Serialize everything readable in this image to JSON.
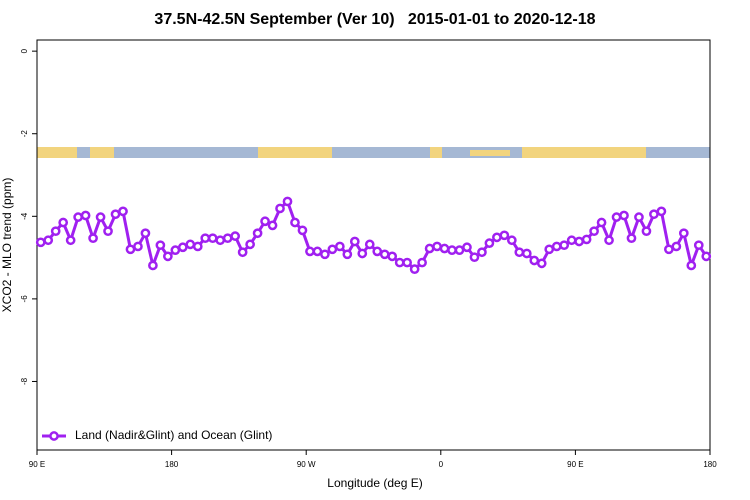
{
  "chart_data": {
    "type": "line",
    "title": "37.5N-42.5N September (Ver 10)   2015-01-01 to 2020-12-18",
    "xlabel": "Longitude (deg E)",
    "ylabel": "XCO2 - MLO trend (ppm)",
    "xlim": [
      90,
      540
    ],
    "xticks": [
      {
        "value": 90,
        "label": "90 E"
      },
      180,
      {
        "value": 270,
        "label": "90 W"
      },
      {
        "value": 360,
        "label": "0"
      },
      {
        "value": 450,
        "label": "90 E"
      },
      {
        "value": 540,
        "label": "180"
      }
    ],
    "ylim": [
      -9.66,
      0.27
    ],
    "yticks": [
      0,
      -2,
      -4,
      -6,
      -8
    ],
    "legend": "bottom-left",
    "series": [
      {
        "name": "Land (Nadir&Glint) and Ocean (Glint)",
        "color": "#a020f0",
        "x": [
          92.5,
          97.5,
          102.5,
          107.5,
          112.5,
          117.5,
          122.5,
          127.5,
          132.5,
          137.5,
          142.5,
          147.5,
          152.5,
          157.5,
          162.5,
          167.5,
          172.5,
          177.5,
          182.5,
          187.5,
          192.5,
          197.5,
          202.5,
          207.5,
          212.5,
          217.5,
          222.5,
          227.5,
          232.5,
          237.5,
          242.5,
          247.5,
          252.5,
          257.5,
          262.5,
          267.5,
          272.5,
          277.5,
          282.5,
          287.5,
          292.5,
          297.5,
          302.5,
          307.5,
          312.5,
          317.5,
          322.5,
          327.5,
          332.5,
          337.5,
          342.5,
          347.5,
          352.5,
          357.5,
          362.5,
          367.5,
          372.5,
          377.5,
          382.5,
          387.5,
          392.5,
          397.5,
          402.5,
          407.5,
          412.5,
          417.5,
          422.5,
          427.5,
          432.5,
          437.5,
          442.5,
          447.5,
          452.5,
          457.5,
          462.5,
          467.5,
          472.5,
          477.5,
          482.5,
          487.5,
          492.5,
          497.5,
          502.5,
          507.5,
          512.5,
          517.5,
          522.5,
          527.5,
          532.5,
          537.5
        ],
        "values": [
          -4.63,
          -4.58,
          -4.36,
          -4.15,
          -4.58,
          -4.02,
          -3.98,
          -4.53,
          -4.02,
          -4.36,
          -3.95,
          -3.88,
          -4.8,
          -4.73,
          -4.41,
          -5.19,
          -4.7,
          -4.97,
          -4.82,
          -4.75,
          -4.68,
          -4.73,
          -4.53,
          -4.53,
          -4.58,
          -4.53,
          -4.48,
          -4.87,
          -4.68,
          -4.41,
          -4.12,
          -4.22,
          -3.81,
          -3.64,
          -4.15,
          -4.34,
          -4.85,
          -4.85,
          -4.92,
          -4.8,
          -4.73,
          -4.92,
          -4.61,
          -4.9,
          -4.68,
          -4.85,
          -4.92,
          -4.97,
          -5.12,
          -5.12,
          -5.28,
          -5.12,
          -4.78,
          -4.73,
          -4.78,
          -4.82,
          -4.82,
          -4.75,
          -4.99,
          -4.87,
          -4.65,
          -4.51,
          -4.46,
          -4.58,
          -4.87,
          -4.9,
          -5.07,
          -5.14,
          -4.8,
          -4.73,
          -4.7,
          -4.58,
          -4.61,
          -4.56,
          -4.36,
          -4.15,
          -4.58,
          -4.02,
          -3.98,
          -4.53,
          -4.02,
          -4.36,
          -3.95,
          -3.88,
          -4.8,
          -4.73,
          -4.41,
          -5.19,
          -4.7,
          -4.97
        ]
      }
    ]
  }
}
